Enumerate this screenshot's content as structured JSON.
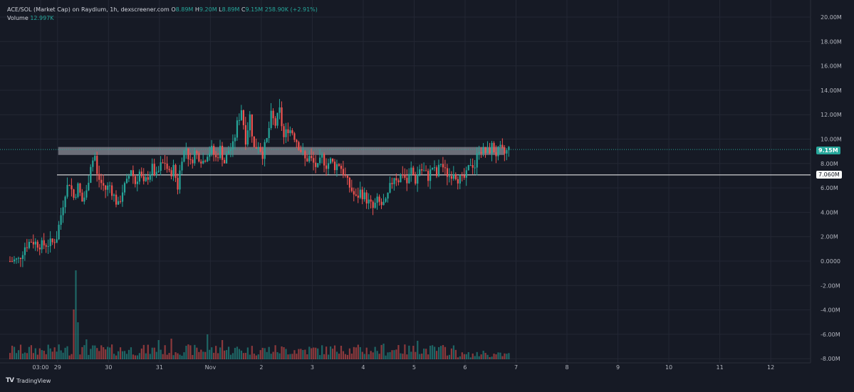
{
  "legend": {
    "title": "ACE/SOL (Market Cap) on Raydium, 1h, dexscreener.com",
    "o_label": "O",
    "o_value": "8.89M",
    "h_label": "H",
    "h_value": "9.20M",
    "l_label": "L",
    "l_value": "8.89M",
    "c_label": "C",
    "c_value": "9.15M",
    "change": "258.90K (+2.91%)",
    "volume_label": "Volume",
    "volume_value": "12.997K"
  },
  "tags": {
    "last_price": "9.15M",
    "horizontal_level": "7.060M"
  },
  "footer": {
    "brand": "TradingView",
    "logo": "TV"
  },
  "colors": {
    "background": "#161a25",
    "grid": "#232734",
    "up": "#26a69a",
    "down": "#ef5350",
    "zone": "#b2b5be",
    "level_line": "#ffffff",
    "axis_text": "#b2b5be"
  },
  "chart_data": {
    "type": "candlestick",
    "title": "ACE/SOL (Market Cap) on Raydium, 1h, dexscreener.com",
    "y_unit": "M",
    "ylim": [
      -8,
      21
    ],
    "y_ticks": [
      "20.00M",
      "18.00M",
      "16.00M",
      "14.00M",
      "12.00M",
      "10.00M",
      "8.00M",
      "6.00M",
      "4.00M",
      "2.00M",
      "0.0000",
      "-2.00M",
      "-4.00M",
      "-6.00M",
      "-8.00M"
    ],
    "y_tick_values": [
      20,
      18,
      16,
      14,
      12,
      10,
      8,
      6,
      4,
      2,
      0,
      -2,
      -4,
      -6,
      -8
    ],
    "x_ticks": [
      {
        "label": "03:00",
        "t": 1
      },
      {
        "label": "29",
        "t": 9
      },
      {
        "label": "30",
        "t": 33
      },
      {
        "label": "31",
        "t": 57
      },
      {
        "label": "Nov",
        "t": 81
      },
      {
        "label": "2",
        "t": 105
      },
      {
        "label": "3",
        "t": 129
      },
      {
        "label": "4",
        "t": 153
      },
      {
        "label": "5",
        "t": 177
      },
      {
        "label": "6",
        "t": 201
      },
      {
        "label": "7",
        "t": 225
      },
      {
        "label": "8",
        "t": 249
      },
      {
        "label": "9",
        "t": 273
      },
      {
        "label": "10",
        "t": 297
      },
      {
        "label": "11",
        "t": 321
      },
      {
        "label": "12",
        "t": 345
      }
    ],
    "grid": true,
    "resistance_zone": {
      "from": 8.7,
      "to": 9.35,
      "t_start": 14,
      "t_end": 240
    },
    "horizontal_level": 7.06,
    "last_price": 9.15,
    "close_path": [
      [
        0,
        0.0
      ],
      [
        4,
        0.1
      ],
      [
        7,
        1.2
      ],
      [
        10,
        1.7
      ],
      [
        12,
        1.5
      ],
      [
        15,
        1.3
      ],
      [
        17,
        1.4
      ],
      [
        20,
        1.5
      ],
      [
        22,
        2.0
      ],
      [
        24,
        3.8
      ],
      [
        26,
        5.7
      ],
      [
        28,
        6.5
      ],
      [
        30,
        5.2
      ],
      [
        32,
        6.1
      ],
      [
        34,
        4.9
      ],
      [
        36,
        5.6
      ],
      [
        38,
        8.0
      ],
      [
        40,
        8.6
      ],
      [
        41,
        7.0
      ],
      [
        43,
        6.4
      ],
      [
        45,
        5.9
      ],
      [
        47,
        6.2
      ],
      [
        49,
        5.3
      ],
      [
        51,
        4.5
      ],
      [
        53,
        5.8
      ],
      [
        55,
        6.4
      ],
      [
        57,
        7.6
      ],
      [
        59,
        6.4
      ],
      [
        61,
        7.3
      ],
      [
        63,
        6.2
      ],
      [
        65,
        7.0
      ],
      [
        67,
        7.6
      ],
      [
        69,
        6.9
      ],
      [
        71,
        7.8
      ],
      [
        73,
        8.1
      ],
      [
        75,
        7.1
      ],
      [
        77,
        7.6
      ],
      [
        79,
        6.1
      ],
      [
        81,
        8.6
      ],
      [
        83,
        9.3
      ],
      [
        85,
        8.0
      ],
      [
        87,
        8.9
      ],
      [
        89,
        8.6
      ],
      [
        91,
        8.2
      ],
      [
        93,
        8.9
      ],
      [
        95,
        9.1
      ],
      [
        97,
        8.4
      ],
      [
        99,
        9.2
      ],
      [
        101,
        8.1
      ],
      [
        103,
        9.1
      ],
      [
        105,
        9.4
      ],
      [
        107,
        11.2
      ],
      [
        109,
        12.5
      ],
      [
        111,
        10.0
      ],
      [
        113,
        11.9
      ],
      [
        115,
        9.2
      ],
      [
        117,
        9.6
      ],
      [
        119,
        8.8
      ],
      [
        121,
        9.9
      ],
      [
        123,
        11.9
      ],
      [
        125,
        11.2
      ],
      [
        127,
        12.3
      ],
      [
        129,
        10.1
      ],
      [
        131,
        10.9
      ],
      [
        133,
        10.6
      ],
      [
        135,
        9.9
      ],
      [
        137,
        9.1
      ],
      [
        139,
        8.3
      ],
      [
        141,
        8.5
      ],
      [
        143,
        8.0
      ],
      [
        145,
        7.6
      ],
      [
        147,
        8.5
      ],
      [
        149,
        7.9
      ],
      [
        151,
        8.2
      ],
      [
        153,
        7.8
      ],
      [
        155,
        8.0
      ],
      [
        157,
        7.3
      ],
      [
        159,
        6.4
      ],
      [
        161,
        5.8
      ],
      [
        163,
        5.1
      ],
      [
        165,
        5.7
      ],
      [
        167,
        5.3
      ],
      [
        169,
        4.8
      ],
      [
        171,
        4.3
      ],
      [
        173,
        4.9
      ],
      [
        175,
        4.6
      ],
      [
        177,
        4.7
      ],
      [
        179,
        6.0
      ],
      [
        181,
        7.0
      ],
      [
        183,
        6.7
      ],
      [
        185,
        7.3
      ],
      [
        187,
        6.4
      ],
      [
        189,
        7.5
      ],
      [
        191,
        6.6
      ],
      [
        193,
        7.6
      ],
      [
        195,
        7.3
      ],
      [
        197,
        6.9
      ],
      [
        199,
        7.7
      ],
      [
        201,
        7.0
      ],
      [
        203,
        8.1
      ],
      [
        205,
        7.3
      ],
      [
        207,
        7.0
      ],
      [
        209,
        7.4
      ],
      [
        211,
        6.8
      ],
      [
        213,
        6.6
      ],
      [
        215,
        7.0
      ],
      [
        217,
        8.1
      ],
      [
        219,
        7.8
      ],
      [
        221,
        9.3
      ],
      [
        223,
        9.0
      ],
      [
        225,
        8.9
      ],
      [
        227,
        9.4
      ],
      [
        229,
        8.8
      ],
      [
        231,
        9.1
      ],
      [
        233,
        8.8
      ],
      [
        235,
        9.15
      ]
    ],
    "volume_spikes": [
      {
        "t": 30,
        "v": 7.0
      },
      {
        "t": 31,
        "v": 12.5
      },
      {
        "t": 32,
        "v": 5.2
      },
      {
        "t": 36,
        "v": 2.8
      },
      {
        "t": 44,
        "v": 1.7
      },
      {
        "t": 70,
        "v": 2.7
      },
      {
        "t": 76,
        "v": 2.9
      },
      {
        "t": 93,
        "v": 3.5
      },
      {
        "t": 100,
        "v": 2.7
      },
      {
        "t": 156,
        "v": 1.9
      },
      {
        "t": 176,
        "v": 2.2
      },
      {
        "t": 183,
        "v": 2.0
      },
      {
        "t": 192,
        "v": 2.6
      },
      {
        "t": 223,
        "v": 2.4
      }
    ]
  }
}
